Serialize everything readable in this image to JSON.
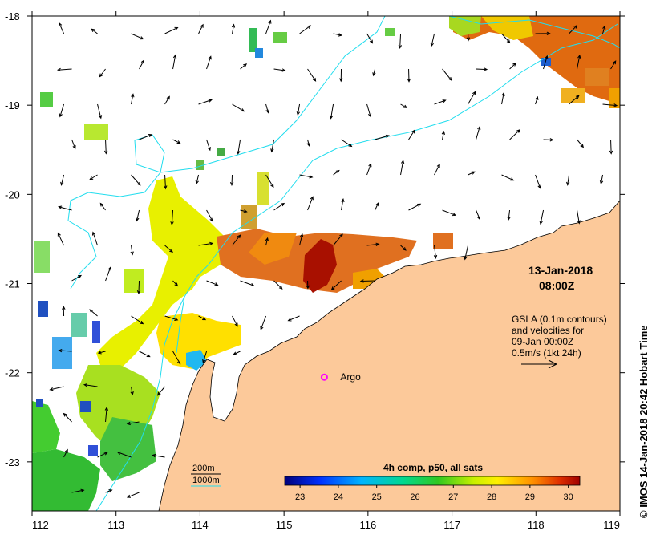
{
  "map": {
    "x_axis": {
      "range": [
        112,
        119
      ],
      "tick_labels": [
        "112",
        "113",
        "114",
        "115",
        "116",
        "117",
        "118",
        "119"
      ]
    },
    "y_axis": {
      "range": [
        -23.55,
        -18
      ],
      "tick_labels": [
        "-18",
        "-19",
        "-20",
        "-21",
        "-22",
        "-23"
      ]
    },
    "date_line1": "13-Jan-2018",
    "date_line2": "08:00Z",
    "info_lines": [
      "GSLA (0.1m contours)",
      "and velocities for",
      "09-Jan 00:00Z",
      "0.5m/s (1kt 24h)"
    ],
    "argo_label": "Argo",
    "argo_position": [
      115.48,
      -22.05
    ],
    "bathymetry_legend": [
      {
        "label": "200m",
        "color": "#000000"
      },
      {
        "label": "1000m",
        "color": "#22ddee"
      }
    ],
    "colorbar": {
      "title": "4h comp, p50, all sats",
      "tick_labels": [
        "23",
        "24",
        "25",
        "26",
        "27",
        "28",
        "29",
        "30"
      ],
      "range": [
        22.6,
        30.3
      ]
    },
    "credit": "© IMOS 14-Jan-2018 20:42 Hobart Time",
    "colors": {
      "land": "#fcc99a",
      "argo_marker": "#ff00ff",
      "contour_1000m": "#22ddee"
    }
  }
}
